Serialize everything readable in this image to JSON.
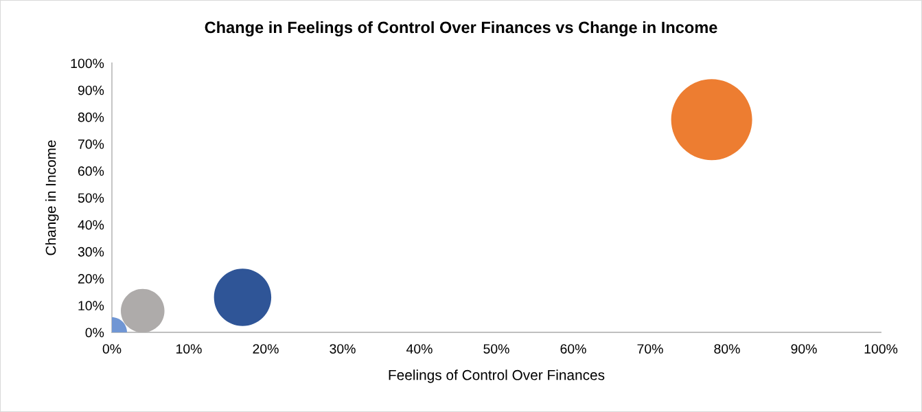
{
  "chart_data": {
    "type": "bubble",
    "title": "Change in Feelings of Control Over Finances vs Change in Income",
    "xlabel": "Feelings of Control Over Finances",
    "ylabel": "Change in Income",
    "x": [
      0,
      4,
      17,
      78
    ],
    "values": [
      0,
      8,
      13,
      79
    ],
    "sizes": [
      0.14,
      0.29,
      0.5,
      1
    ],
    "colors": [
      "#7096d4",
      "#aeabaa",
      "#2f5597",
      "#ed7d31"
    ],
    "xlim": [
      0,
      100
    ],
    "ylim": [
      0,
      100
    ],
    "xticks": [
      {
        "value": 0,
        "label": "0%"
      },
      {
        "value": 10,
        "label": "10%"
      },
      {
        "value": 20,
        "label": "20%"
      },
      {
        "value": 30,
        "label": "30%"
      },
      {
        "value": 40,
        "label": "40%"
      },
      {
        "value": 50,
        "label": "50%"
      },
      {
        "value": 60,
        "label": "60%"
      },
      {
        "value": 70,
        "label": "70%"
      },
      {
        "value": 80,
        "label": "80%"
      },
      {
        "value": 90,
        "label": "90%"
      },
      {
        "value": 100,
        "label": "100%"
      }
    ],
    "yticks": [
      {
        "value": 0,
        "label": "0%"
      },
      {
        "value": 10,
        "label": "10%"
      },
      {
        "value": 20,
        "label": "20%"
      },
      {
        "value": 30,
        "label": "30%"
      },
      {
        "value": 40,
        "label": "40%"
      },
      {
        "value": 50,
        "label": "50%"
      },
      {
        "value": 60,
        "label": "60%"
      },
      {
        "value": 70,
        "label": "70%"
      },
      {
        "value": 80,
        "label": "80%"
      },
      {
        "value": 90,
        "label": "90%"
      },
      {
        "value": 100,
        "label": "100%"
      }
    ],
    "grid": false,
    "legend": false
  }
}
